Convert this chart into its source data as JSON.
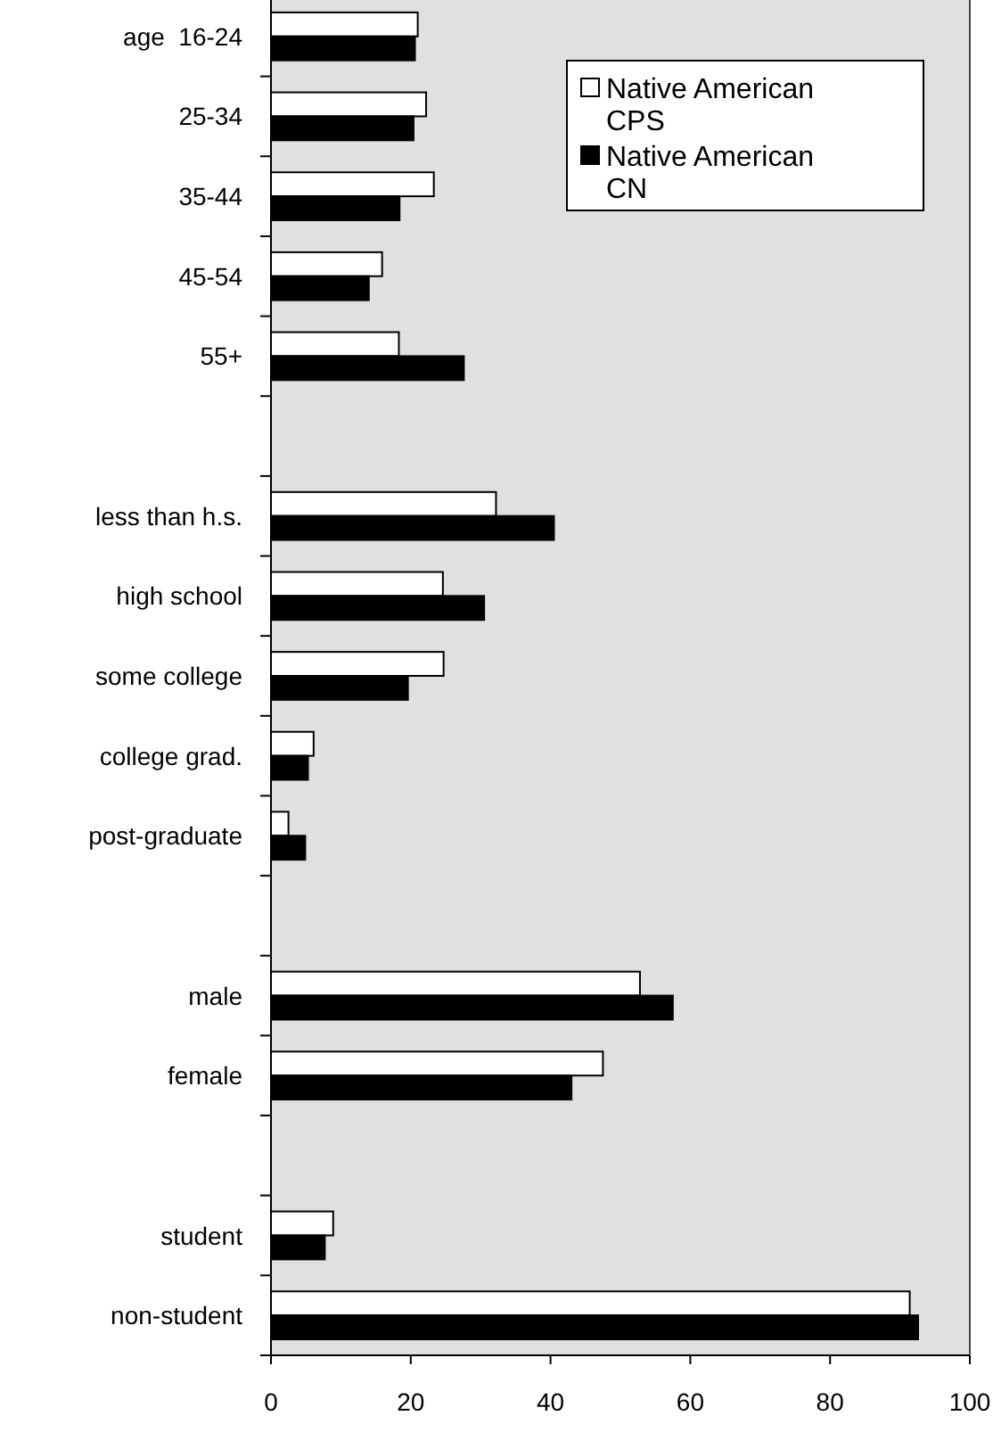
{
  "chart_data": {
    "type": "bar",
    "orientation": "horizontal",
    "categories": [
      "age  16-24",
      "25-34",
      "35-44",
      "45-54",
      "55+",
      null,
      "less than h.s.",
      "high school",
      "some college",
      "college grad.",
      "post-graduate",
      null,
      "male",
      "female",
      null,
      "student",
      "non-student"
    ],
    "series": [
      {
        "name": "Native American CPS",
        "color": "#ffffff",
        "values": [
          21.0,
          22.2,
          23.3,
          15.9,
          18.3,
          null,
          32.2,
          24.6,
          24.7,
          6.1,
          2.5,
          null,
          52.8,
          47.5,
          null,
          8.9,
          91.4
        ]
      },
      {
        "name": "Native American CN",
        "color": "#000000",
        "values": [
          20.6,
          20.4,
          18.4,
          14.0,
          27.6,
          null,
          40.5,
          30.5,
          19.6,
          5.3,
          4.9,
          null,
          57.5,
          43.0,
          null,
          7.7,
          92.6
        ]
      }
    ],
    "xlim": [
      0,
      100
    ],
    "xticks": [
      0,
      20,
      40,
      60,
      80,
      100
    ],
    "grid": false,
    "legend": "top right"
  }
}
